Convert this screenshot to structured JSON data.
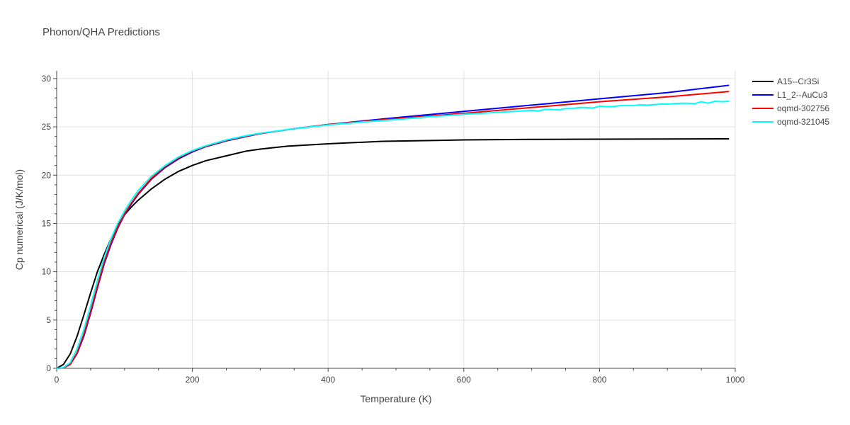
{
  "chart_data": {
    "type": "line",
    "title": "Phonon/QHA Predictions",
    "xlabel": "Temperature (K)",
    "ylabel": "Cp numerical (J/K/mol)",
    "xlim": [
      0,
      1000
    ],
    "ylim": [
      0,
      30.8
    ],
    "xticks": [
      0,
      200,
      400,
      600,
      800,
      1000
    ],
    "yticks": [
      0,
      5,
      10,
      15,
      20,
      25,
      30
    ],
    "grid": true,
    "legend_position": "top-right",
    "colors": {
      "A15--Cr3Si": "#000000",
      "L1_2--AuCu3": "#0000ff",
      "oqmd-302756": "#ff0000",
      "oqmd-321045": "#00ffff"
    },
    "series": [
      {
        "name": "A15--Cr3Si",
        "x": [
          0,
          10,
          20,
          30,
          40,
          50,
          60,
          70,
          80,
          90,
          100,
          110,
          120,
          140,
          160,
          180,
          200,
          220,
          250,
          280,
          300,
          340,
          400,
          480,
          560,
          600,
          700,
          800,
          900,
          990
        ],
        "y": [
          0,
          0.4,
          1.5,
          3.3,
          5.5,
          7.8,
          10.0,
          11.8,
          13.4,
          14.8,
          15.9,
          16.7,
          17.4,
          18.6,
          19.6,
          20.4,
          21.0,
          21.5,
          22.0,
          22.5,
          22.7,
          23.0,
          23.25,
          23.5,
          23.6,
          23.65,
          23.7,
          23.72,
          23.74,
          23.76
        ]
      },
      {
        "name": "L1_2--AuCu3",
        "x": [
          0,
          10,
          20,
          30,
          40,
          50,
          60,
          70,
          80,
          90,
          100,
          110,
          120,
          140,
          160,
          180,
          200,
          220,
          250,
          280,
          300,
          350,
          400,
          450,
          500,
          600,
          700,
          800,
          900,
          990
        ],
        "y": [
          0,
          0.05,
          0.4,
          1.5,
          3.3,
          5.7,
          8.3,
          10.8,
          12.8,
          14.5,
          15.9,
          17.0,
          18.0,
          19.6,
          20.8,
          21.7,
          22.4,
          22.95,
          23.55,
          24.0,
          24.3,
          24.8,
          25.25,
          25.6,
          25.95,
          26.6,
          27.25,
          27.9,
          28.55,
          29.3
        ]
      },
      {
        "name": "oqmd-302756",
        "x": [
          0,
          10,
          20,
          30,
          40,
          50,
          60,
          70,
          80,
          90,
          100,
          110,
          120,
          140,
          160,
          180,
          200,
          220,
          250,
          280,
          300,
          350,
          400,
          450,
          500,
          600,
          700,
          800,
          900,
          990
        ],
        "y": [
          0,
          0.05,
          0.4,
          1.6,
          3.5,
          5.9,
          8.5,
          11.0,
          13.0,
          14.6,
          16.0,
          17.1,
          18.1,
          19.7,
          20.9,
          21.8,
          22.5,
          23.0,
          23.6,
          24.05,
          24.3,
          24.8,
          25.25,
          25.55,
          25.85,
          26.4,
          27.0,
          27.6,
          28.1,
          28.65
        ]
      },
      {
        "name": "oqmd-321045",
        "x": [
          0,
          10,
          20,
          30,
          40,
          50,
          60,
          70,
          80,
          90,
          100,
          110,
          120,
          140,
          160,
          180,
          200,
          220,
          250,
          280,
          300,
          350,
          400,
          450,
          500,
          550,
          600,
          650,
          700,
          710,
          720,
          730,
          740,
          750,
          760,
          770,
          780,
          790,
          800,
          810,
          820,
          830,
          840,
          850,
          860,
          870,
          880,
          890,
          900,
          910,
          920,
          930,
          940,
          950,
          960,
          970,
          980,
          990
        ],
        "y": [
          0,
          0.08,
          0.6,
          2.0,
          4.0,
          6.5,
          9.1,
          11.5,
          13.4,
          15.0,
          16.3,
          17.4,
          18.4,
          19.9,
          21.0,
          21.9,
          22.55,
          23.05,
          23.65,
          24.1,
          24.35,
          24.8,
          25.2,
          25.5,
          25.75,
          26.05,
          26.3,
          26.5,
          26.7,
          26.65,
          26.8,
          26.8,
          26.75,
          26.9,
          26.9,
          27.0,
          27.0,
          26.95,
          27.15,
          27.1,
          27.1,
          27.2,
          27.2,
          27.2,
          27.3,
          27.25,
          27.3,
          27.35,
          27.35,
          27.4,
          27.45,
          27.45,
          27.4,
          27.6,
          27.45,
          27.65,
          27.6,
          27.65
        ]
      }
    ]
  }
}
